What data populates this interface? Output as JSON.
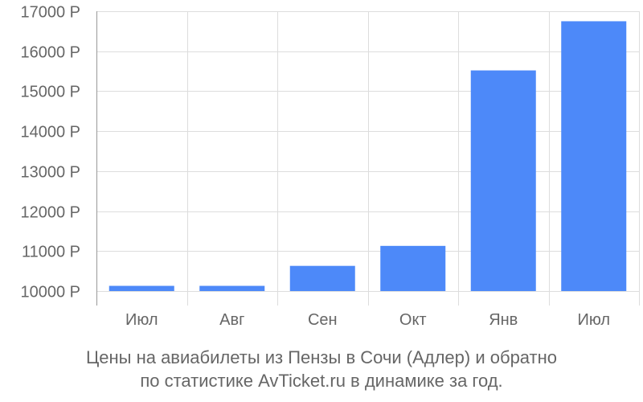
{
  "chart_data": {
    "type": "bar",
    "categories": [
      "Июл",
      "Авг",
      "Сен",
      "Окт",
      "Янв",
      "Июл"
    ],
    "values": [
      10130,
      10130,
      10630,
      11130,
      15520,
      16750
    ],
    "ylim": [
      10000,
      17000
    ],
    "yticks": [
      10000,
      11000,
      12000,
      13000,
      14000,
      15000,
      16000,
      17000
    ],
    "ytick_labels": [
      "10000 Р",
      "11000 Р",
      "12000 Р",
      "13000 Р",
      "14000 Р",
      "15000 Р",
      "16000 Р",
      "17000 Р"
    ],
    "grid": true,
    "colors": {
      "bar": "#4d89f9",
      "grid": "#dddddd",
      "axis": "#999999",
      "text": "#666666"
    }
  },
  "caption": {
    "line1": "Цены на авиабилеты из Пензы в Сочи (Адлер) и обратно",
    "line2": "по статистике AvTicket.ru в динамике за год."
  }
}
